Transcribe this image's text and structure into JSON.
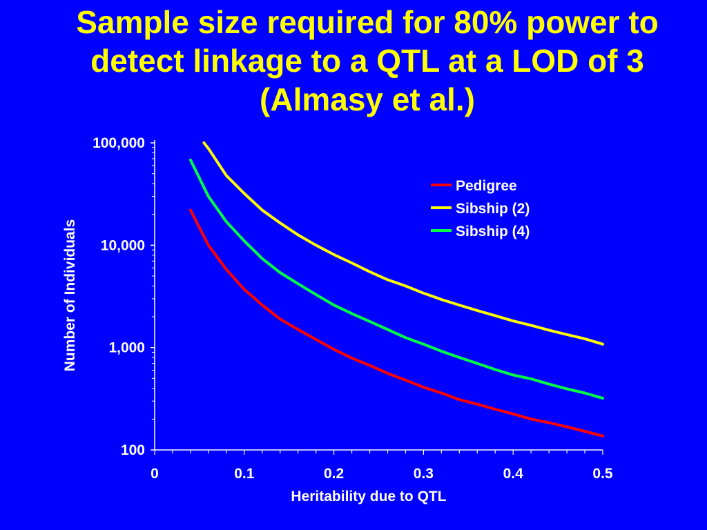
{
  "title": {
    "lines": [
      "Sample size required for 80% power to",
      "detect linkage to a QTL at a LOD of 3",
      "(Almasy et al.)"
    ]
  },
  "chart_data": {
    "type": "line",
    "xlabel": "Heritability due to QTL",
    "ylabel": "Number of Individuals",
    "x_scale": "linear",
    "y_scale": "log",
    "xlim": [
      0,
      0.5
    ],
    "ylim": [
      100,
      100000
    ],
    "x_ticks": [
      0,
      0.1,
      0.2,
      0.3,
      0.4,
      0.5
    ],
    "x_tick_labels": [
      "0",
      "0.1",
      "0.2",
      "0.3",
      "0.4",
      "0.5"
    ],
    "y_ticks": [
      100,
      1000,
      10000,
      100000
    ],
    "y_tick_labels": [
      "100",
      "1,000",
      "10,000",
      "100,000"
    ],
    "grid": false,
    "legend_position": "top-right",
    "series": [
      {
        "name": "Pedigree",
        "color": "#ff0000",
        "x": [
          0.04,
          0.06,
          0.08,
          0.1,
          0.12,
          0.14,
          0.16,
          0.18,
          0.2,
          0.22,
          0.24,
          0.26,
          0.28,
          0.3,
          0.32,
          0.34,
          0.36,
          0.38,
          0.4,
          0.42,
          0.44,
          0.46,
          0.48,
          0.5
        ],
        "y": [
          22000,
          10000,
          5800,
          3700,
          2600,
          1900,
          1500,
          1200,
          960,
          790,
          670,
          560,
          480,
          410,
          360,
          310,
          280,
          250,
          225,
          200,
          185,
          168,
          152,
          137
        ]
      },
      {
        "name": "Sibship (2)",
        "color": "#ffff00",
        "x": [
          0.055,
          0.06,
          0.08,
          0.1,
          0.12,
          0.14,
          0.16,
          0.18,
          0.2,
          0.22,
          0.24,
          0.26,
          0.28,
          0.3,
          0.32,
          0.34,
          0.36,
          0.38,
          0.4,
          0.42,
          0.44,
          0.46,
          0.48,
          0.5
        ],
        "y": [
          100000,
          88000,
          48000,
          32000,
          22000,
          16500,
          12600,
          10000,
          8100,
          6700,
          5500,
          4600,
          4000,
          3400,
          2950,
          2600,
          2300,
          2050,
          1820,
          1650,
          1480,
          1340,
          1220,
          1080
        ]
      },
      {
        "name": "Sibship (4)",
        "color": "#00ff44",
        "x": [
          0.04,
          0.06,
          0.08,
          0.1,
          0.12,
          0.14,
          0.16,
          0.18,
          0.2,
          0.22,
          0.24,
          0.26,
          0.28,
          0.3,
          0.32,
          0.34,
          0.36,
          0.38,
          0.4,
          0.42,
          0.44,
          0.46,
          0.48,
          0.5
        ],
        "y": [
          68000,
          30000,
          17000,
          11000,
          7400,
          5400,
          4200,
          3300,
          2600,
          2150,
          1800,
          1500,
          1250,
          1080,
          920,
          800,
          700,
          610,
          540,
          495,
          440,
          395,
          360,
          320
        ]
      }
    ]
  }
}
